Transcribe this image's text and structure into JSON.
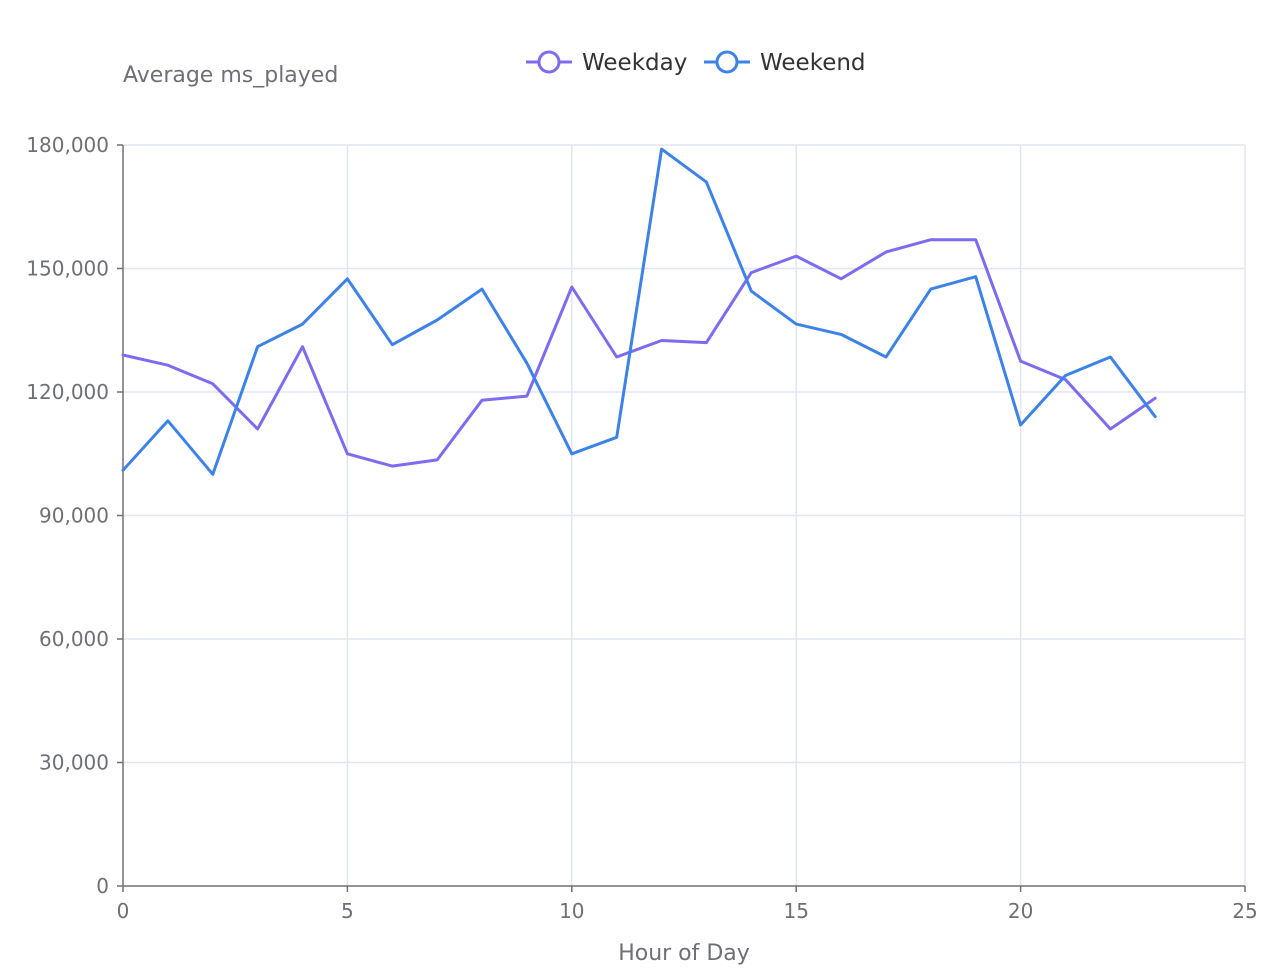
{
  "chart_data": {
    "type": "line",
    "title": "",
    "xlabel": "Hour of Day",
    "ylabel": "Average ms_played",
    "xlim": [
      0,
      25
    ],
    "ylim": [
      0,
      180000
    ],
    "x_ticks": [
      0,
      5,
      10,
      15,
      20,
      25
    ],
    "y_ticks": [
      0,
      30000,
      60000,
      90000,
      120000,
      150000,
      180000
    ],
    "x_tick_labels": [
      "0",
      "5",
      "10",
      "15",
      "20",
      "25"
    ],
    "y_tick_labels": [
      "0",
      "30,000",
      "60,000",
      "90,000",
      "120,000",
      "150,000",
      "180,000"
    ],
    "grid": true,
    "legend_position": "top-center",
    "x": [
      0,
      1,
      2,
      3,
      4,
      5,
      6,
      7,
      8,
      9,
      10,
      11,
      12,
      13,
      14,
      15,
      16,
      17,
      18,
      19,
      20,
      21,
      22,
      23
    ],
    "series": [
      {
        "name": "Weekday",
        "color": "#7b6cf0",
        "values": [
          129000,
          126500,
          122000,
          111000,
          131000,
          105000,
          102000,
          103500,
          118000,
          119000,
          145500,
          128500,
          132500,
          132000,
          149000,
          153000,
          147500,
          154000,
          157000,
          157000,
          127500,
          123000,
          111000,
          118500
        ]
      },
      {
        "name": "Weekend",
        "color": "#3d82e6",
        "values": [
          101000,
          113000,
          100000,
          131000,
          136500,
          147500,
          131500,
          137500,
          145000,
          127000,
          105000,
          109000,
          179000,
          171000,
          144500,
          136500,
          134000,
          128500,
          145000,
          148000,
          112000,
          124000,
          128500,
          114000
        ]
      }
    ]
  }
}
